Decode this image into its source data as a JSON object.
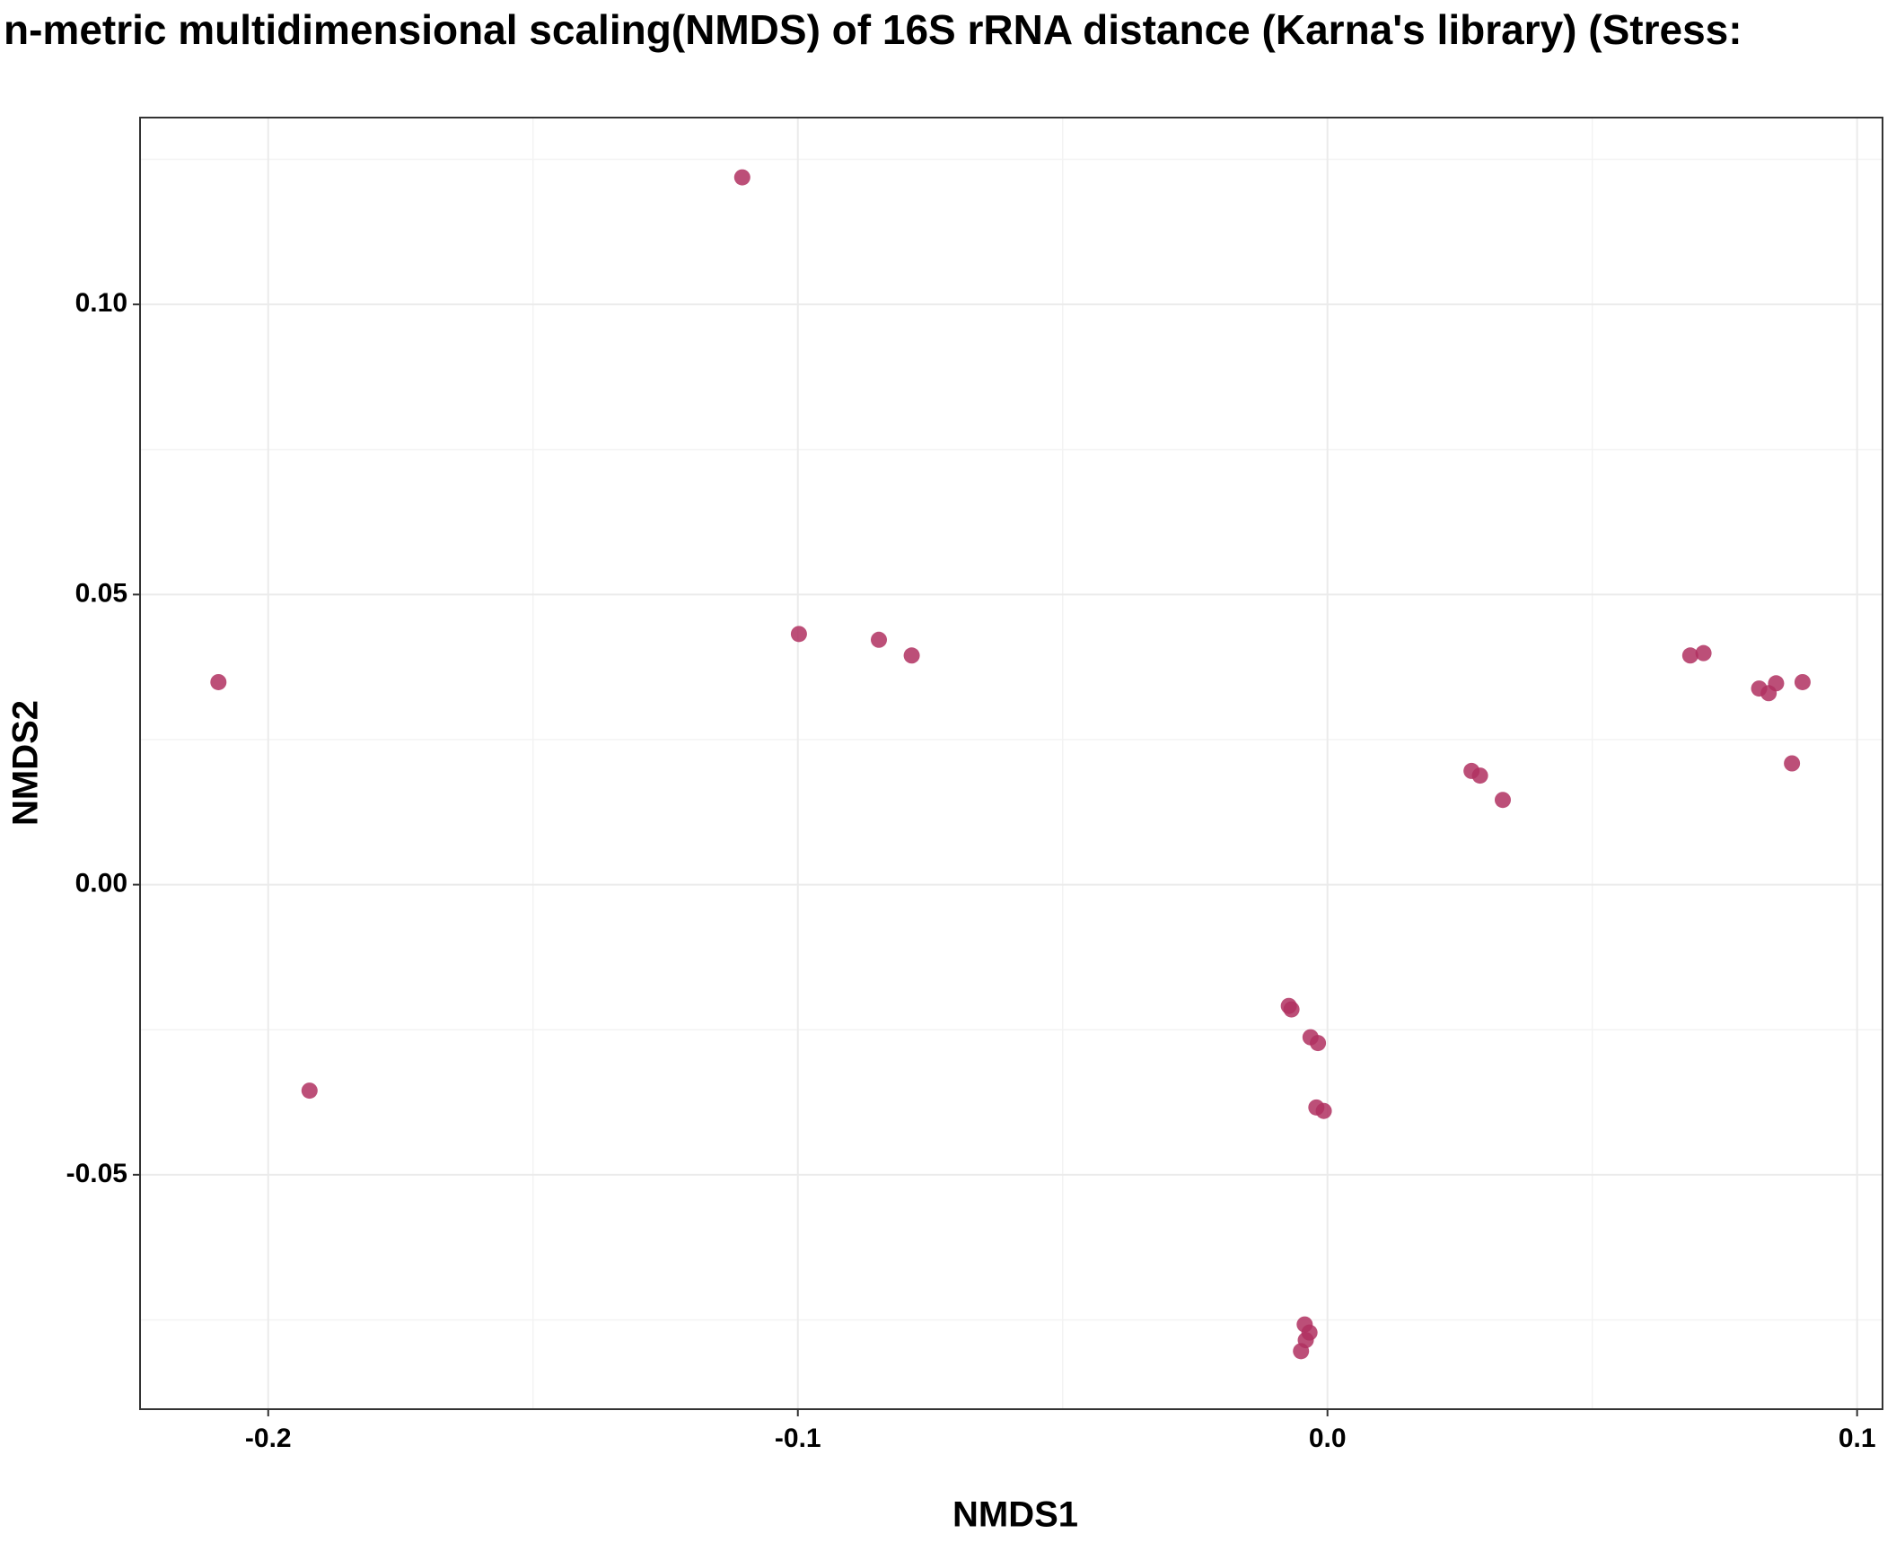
{
  "chart_data": {
    "type": "scatter",
    "title": "n-metric multidimensional scaling(NMDS) of 16S rRNA distance (Karna's library) (Stress:",
    "xlabel": "NMDS1",
    "ylabel": "NMDS2",
    "x": [
      -0.2094,
      -0.1922,
      -0.1105,
      -0.0998,
      -0.0847,
      -0.0785,
      -0.0073,
      -0.0068,
      -0.0032,
      -0.0018,
      -0.0021,
      -0.0007,
      -0.0043,
      -0.0034,
      -0.0041,
      -0.005,
      0.0272,
      0.0288,
      0.0331,
      0.0685,
      0.071,
      0.0815,
      0.0833,
      0.0847,
      0.0897,
      0.0877
    ],
    "values": [
      0.0349,
      -0.0355,
      0.1219,
      0.0432,
      0.0422,
      0.0395,
      -0.0209,
      -0.0215,
      -0.0263,
      -0.0273,
      -0.0384,
      -0.039,
      -0.0758,
      -0.0772,
      -0.0785,
      -0.0804,
      0.0196,
      0.0188,
      0.0146,
      0.0395,
      0.0399,
      0.0338,
      0.033,
      0.0347,
      0.0349,
      0.0209
    ],
    "color": "#b03060",
    "xlim": [
      -0.2242,
      0.1048
    ],
    "ylim": [
      -0.0904,
      0.1322
    ],
    "xticks": [
      -0.2,
      -0.1,
      {
        "value": 0,
        "label": "0.0"
      },
      0.1
    ],
    "yticks": [
      -0.05,
      {
        "value": 0,
        "label": "0.00"
      },
      0.05,
      {
        "value": 0.1,
        "label": "0.10"
      }
    ],
    "xminor": [
      -0.15,
      -0.05,
      0.05
    ],
    "yminor": [
      -0.075,
      -0.025,
      0.025,
      0.075,
      0.125
    ],
    "grid": true
  }
}
